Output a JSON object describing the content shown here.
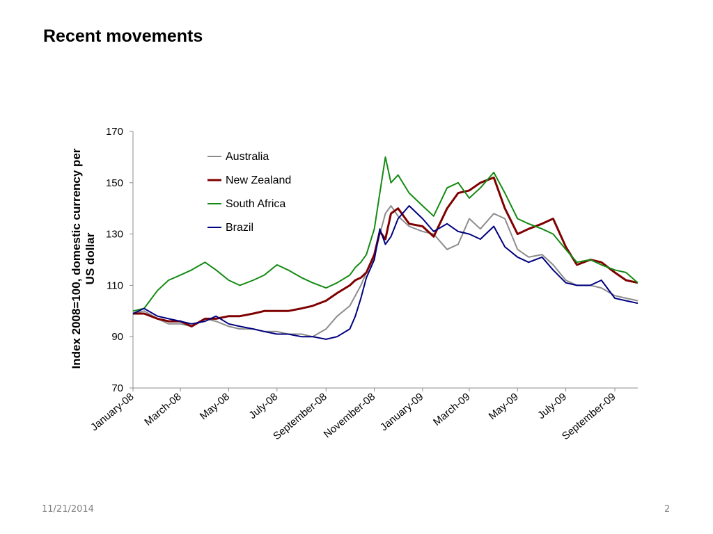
{
  "slide": {
    "title": "Recent movements",
    "date": "11/21/2014",
    "page_number": "2"
  },
  "chart_data": {
    "type": "line",
    "title": "",
    "xlabel": "",
    "ylabel_lines": [
      "Index 2008=100, domestic currency per",
      "US dollar"
    ],
    "ylim": [
      70,
      170
    ],
    "yticks": [
      70,
      90,
      110,
      130,
      150,
      170
    ],
    "xlim": [
      "2008-01-01",
      "2009-09-30"
    ],
    "xticks": [
      {
        "date": "2008-01-01",
        "label": "January-08"
      },
      {
        "date": "2008-03-01",
        "label": "March-08"
      },
      {
        "date": "2008-05-01",
        "label": "May-08"
      },
      {
        "date": "2008-07-01",
        "label": "July-08"
      },
      {
        "date": "2008-09-01",
        "label": "September-08"
      },
      {
        "date": "2008-11-01",
        "label": "November-08"
      },
      {
        "date": "2009-01-01",
        "label": "January-09"
      },
      {
        "date": "2009-03-01",
        "label": "March-09"
      },
      {
        "date": "2009-05-01",
        "label": "May-09"
      },
      {
        "date": "2009-07-01",
        "label": "July-09"
      },
      {
        "date": "2009-09-01",
        "label": "September-09"
      }
    ],
    "grid": false,
    "legend_position": "top-center",
    "x": [
      "2008-01-01",
      "2008-01-15",
      "2008-02-01",
      "2008-02-15",
      "2008-03-01",
      "2008-03-15",
      "2008-04-01",
      "2008-04-15",
      "2008-05-01",
      "2008-05-15",
      "2008-06-01",
      "2008-06-15",
      "2008-07-01",
      "2008-07-15",
      "2008-08-01",
      "2008-08-15",
      "2008-09-01",
      "2008-09-15",
      "2008-10-01",
      "2008-10-08",
      "2008-10-15",
      "2008-10-22",
      "2008-11-01",
      "2008-11-08",
      "2008-11-15",
      "2008-11-22",
      "2008-12-01",
      "2008-12-15",
      "2009-01-01",
      "2009-01-15",
      "2009-02-01",
      "2009-02-15",
      "2009-03-01",
      "2009-03-15",
      "2009-04-01",
      "2009-04-15",
      "2009-05-01",
      "2009-05-15",
      "2009-06-01",
      "2009-06-15",
      "2009-07-01",
      "2009-07-15",
      "2009-08-01",
      "2009-08-15",
      "2009-09-01",
      "2009-09-15",
      "2009-09-30"
    ],
    "series": [
      {
        "name": "Australia",
        "color": "#8c8c8c",
        "values": [
          99,
          100,
          97,
          95,
          95,
          94,
          97,
          96,
          94,
          93,
          93,
          92,
          92,
          91,
          91,
          90,
          93,
          98,
          102,
          106,
          110,
          115,
          121,
          130,
          138,
          141,
          137,
          133,
          131,
          130,
          124,
          126,
          136,
          132,
          138,
          136,
          124,
          121,
          122,
          118,
          112,
          110,
          110,
          109,
          106,
          105,
          104
        ]
      },
      {
        "name": "New Zealand",
        "color": "#7f0000",
        "values": [
          99,
          99,
          97,
          96,
          96,
          94,
          97,
          97,
          98,
          98,
          99,
          100,
          100,
          100,
          101,
          102,
          104,
          107,
          110,
          112,
          113,
          115,
          122,
          131,
          128,
          138,
          140,
          134,
          133,
          129,
          140,
          146,
          147,
          150,
          152,
          140,
          130,
          132,
          134,
          136,
          125,
          118,
          120,
          119,
          115,
          112,
          111
        ]
      },
      {
        "name": "South Africa",
        "color": "#138a13",
        "values": [
          100,
          101,
          108,
          112,
          114,
          116,
          119,
          116,
          112,
          110,
          112,
          114,
          118,
          116,
          113,
          111,
          109,
          111,
          114,
          117,
          119,
          122,
          132,
          146,
          160,
          150,
          153,
          146,
          141,
          137,
          148,
          150,
          144,
          148,
          154,
          146,
          136,
          134,
          132,
          130,
          124,
          119,
          120,
          118,
          116,
          115,
          111
        ]
      },
      {
        "name": "Brazil",
        "color": "#00007f",
        "values": [
          99,
          101,
          98,
          97,
          96,
          95,
          96,
          98,
          95,
          94,
          93,
          92,
          91,
          91,
          90,
          90,
          89,
          90,
          93,
          98,
          105,
          113,
          120,
          132,
          126,
          129,
          136,
          141,
          136,
          131,
          134,
          131,
          130,
          128,
          133,
          125,
          121,
          119,
          121,
          116,
          111,
          110,
          110,
          112,
          105,
          104,
          103
        ]
      }
    ]
  }
}
